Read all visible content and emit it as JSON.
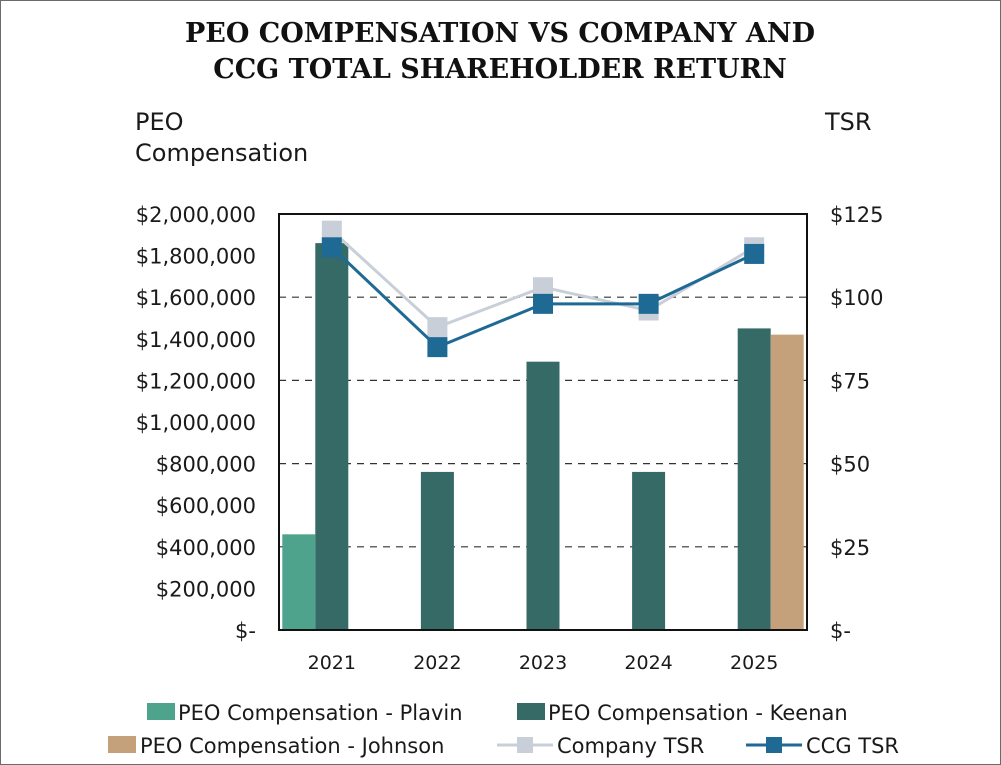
{
  "chart_data": {
    "type": "bar",
    "title_line1": "PEO COMPENSATION VS COMPANY AND",
    "title_line2": "CCG TOTAL SHAREHOLDER RETURN",
    "ylabel_left_line1": "PEO",
    "ylabel_left_line2": "Compensation",
    "ylabel_right": "TSR",
    "categories": [
      "2021",
      "2022",
      "2023",
      "2024",
      "2025"
    ],
    "y_left": {
      "ylim": [
        0,
        2000000
      ],
      "ticks": [
        "$2,000,000",
        "$1,800,000",
        "$1,600,000",
        "$1,400,000",
        "$1,200,000",
        "$1,000,000",
        "$800,000",
        "$600,000",
        "$400,000",
        "$200,000",
        "$-"
      ],
      "tick_values": [
        2000000,
        1800000,
        1600000,
        1400000,
        1200000,
        1000000,
        800000,
        600000,
        400000,
        200000,
        0
      ]
    },
    "y_right": {
      "ylim": [
        0,
        125
      ],
      "ticks": [
        "$125",
        "$100",
        "$75",
        "$50",
        "$25",
        "$-"
      ],
      "tick_values": [
        125,
        100,
        75,
        50,
        25,
        0
      ]
    },
    "grid": "dashed horizontal at right-axis ticks",
    "bar_series": [
      {
        "name": "PEO Compensation - Plavin",
        "color": "#4ea38c",
        "values": [
          460000,
          null,
          null,
          null,
          null
        ]
      },
      {
        "name": "PEO Compensation - Keenan",
        "color": "#356a66",
        "values": [
          1860000,
          760000,
          1290000,
          760000,
          1450000
        ]
      },
      {
        "name": "PEO Compensation - Johnson",
        "color": "#c4a17b",
        "values": [
          null,
          null,
          null,
          null,
          1420000
        ]
      }
    ],
    "line_series": [
      {
        "name": "Company TSR",
        "color": "#c9cfd8",
        "values": [
          120,
          91,
          103,
          96,
          115
        ]
      },
      {
        "name": "CCG TSR",
        "color": "#1f6a94",
        "values": [
          115,
          85,
          98,
          98,
          113
        ]
      }
    ],
    "legend_placement": "bottom"
  }
}
